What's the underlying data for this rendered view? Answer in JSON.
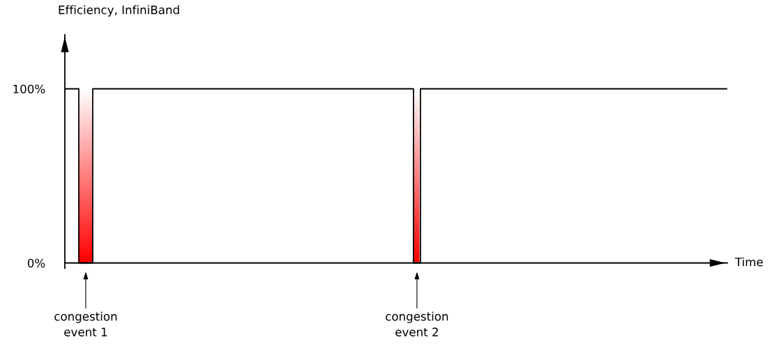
{
  "chart_data": {
    "type": "step",
    "ylabel": "Efficiency, InfiniBand",
    "xlabel": "Time",
    "categories": [
      null,
      null,
      null,
      null,
      null,
      null,
      null,
      null,
      null,
      null,
      null,
      null,
      null,
      null,
      null,
      null,
      null,
      null,
      null,
      null,
      null,
      null,
      null,
      null,
      null,
      null,
      null,
      null,
      null,
      null,
      null,
      null,
      null,
      null,
      null,
      null,
      null,
      null,
      null,
      null,
      null,
      null,
      null,
      null,
      null,
      null,
      null,
      null,
      null,
      null,
      null,
      null,
      null,
      null,
      null,
      null,
      null,
      null,
      null,
      null,
      null,
      null,
      null,
      null,
      null,
      null,
      null,
      null,
      null,
      null,
      null,
      null,
      null,
      null,
      null,
      null,
      null,
      null,
      null,
      null,
      null,
      null,
      null,
      null,
      null,
      null,
      null,
      null,
      null,
      null,
      null,
      null,
      null,
      null,
      null,
      null
    ],
    "series": [
      {
        "color": "#000000",
        "values": [
          100,
          100,
          0,
          0,
          100,
          100,
          100,
          100,
          100,
          100,
          100,
          100,
          100,
          100,
          100,
          100,
          100,
          100,
          100,
          100,
          100,
          100,
          100,
          100,
          100,
          100,
          100,
          100,
          100,
          100,
          100,
          100,
          100,
          100,
          100,
          100,
          100,
          100,
          100,
          100,
          100,
          100,
          100,
          100,
          100,
          100,
          100,
          100,
          100,
          100,
          0,
          100,
          100,
          100,
          100,
          100,
          100,
          100,
          100,
          100,
          100,
          100,
          100,
          100,
          100,
          100,
          100,
          100,
          100,
          100,
          100,
          100,
          100,
          100,
          100,
          100,
          100,
          100,
          100,
          100,
          100,
          100,
          100,
          100,
          100,
          100,
          100,
          100,
          100,
          100,
          100,
          100,
          100,
          100,
          100,
          100
        ]
      }
    ],
    "ylim": [
      -3,
      131
    ],
    "yticks": [
      {
        "value": 0,
        "label": "0%"
      },
      {
        "value": 100,
        "label": "100%"
      }
    ],
    "legend": false,
    "annotations": [
      "congestion\nevent 1",
      "congestion\nevent 2"
    ]
  }
}
